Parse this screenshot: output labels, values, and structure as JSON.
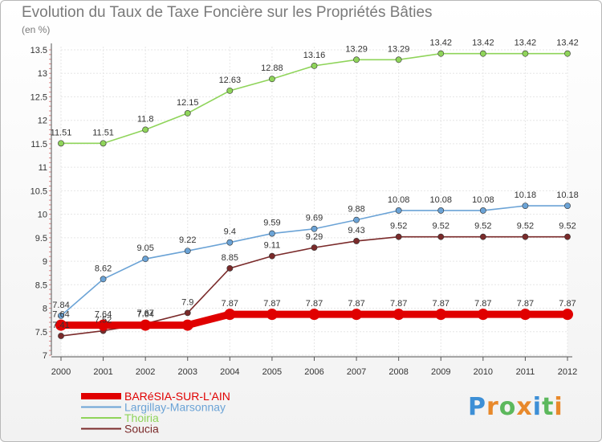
{
  "page": {
    "title": "Evolution du Taux de Taxe Foncière sur les Propriétés Bâties",
    "unit": "(en %)"
  },
  "logo": {
    "letters": [
      "P",
      "r",
      "o",
      "x",
      "i",
      "t",
      "i"
    ],
    "colors": [
      "#3d8fd6",
      "#e8892b",
      "#5cb85c",
      "#e8892b",
      "#3d8fd6",
      "#5cb85c",
      "#e8892b"
    ]
  },
  "chart_data": {
    "type": "line",
    "title": "Evolution du Taux de Taxe Foncière sur les Propriétés Bâties",
    "ylabel": "(en %)",
    "xlabel": "",
    "categories": [
      "2000",
      "2001",
      "2002",
      "2003",
      "2004",
      "2005",
      "2006",
      "2007",
      "2008",
      "2009",
      "2010",
      "2011",
      "2012"
    ],
    "ylim": [
      7,
      13.5
    ],
    "yticks": [
      "7",
      "7.5",
      "8",
      "8.5",
      "9",
      "9.5",
      "10",
      "10.5",
      "11",
      "11.5",
      "12",
      "12.5",
      "13",
      "13.5"
    ],
    "grid": true,
    "legend_position": "bottom-left",
    "series": [
      {
        "name": "BARéSIA-SUR-L'AIN",
        "color": "#e00000",
        "values": [
          7.64,
          7.64,
          7.64,
          7.64,
          7.87,
          7.87,
          7.87,
          7.87,
          7.87,
          7.87,
          7.87,
          7.87,
          7.87
        ],
        "labels": [
          "7.64",
          "7.64",
          "7.64",
          "",
          "7.87",
          "7.87",
          "7.87",
          "7.87",
          "7.87",
          "7.87",
          "7.87",
          "7.87",
          "7.87"
        ],
        "thick": true
      },
      {
        "name": "Largillay-Marsonnay",
        "color": "#6ba3d6",
        "values": [
          7.84,
          8.62,
          9.05,
          9.22,
          9.4,
          9.59,
          9.69,
          9.88,
          10.08,
          10.08,
          10.08,
          10.18,
          10.18
        ],
        "labels": [
          "7.84",
          "8.62",
          "9.05",
          "9.22",
          "9.4",
          "9.59",
          "9.69",
          "9.88",
          "10.08",
          "10.08",
          "10.08",
          "10.18",
          "10.18"
        ]
      },
      {
        "name": "Thoiria",
        "color": "#8fd45a",
        "values": [
          11.51,
          11.51,
          11.8,
          12.15,
          12.63,
          12.88,
          13.16,
          13.29,
          13.29,
          13.42,
          13.42,
          13.42,
          13.42
        ],
        "labels": [
          "11.51",
          "11.51",
          "11.8",
          "12.15",
          "12.63",
          "12.88",
          "13.16",
          "13.29",
          "13.29",
          "13.42",
          "13.42",
          "13.42",
          "13.42"
        ]
      },
      {
        "name": "Soucia",
        "color": "#7a2a2a",
        "values": [
          7.41,
          7.52,
          7.67,
          7.9,
          8.85,
          9.11,
          9.29,
          9.43,
          9.52,
          9.52,
          9.52,
          9.52,
          9.52
        ],
        "labels": [
          "7.41",
          "7.52",
          "7.67",
          "7.9",
          "8.85",
          "9.11",
          "9.29",
          "9.43",
          "9.52",
          "9.52",
          "9.52",
          "9.52",
          "9.52"
        ]
      }
    ]
  }
}
